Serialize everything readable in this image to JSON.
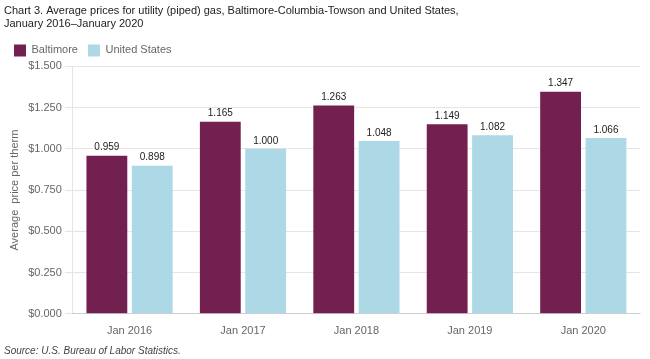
{
  "chart_data": {
    "type": "bar",
    "title": [
      "Chart 3. Average prices for utility (piped) gas, Baltimore-Columbia-Towson and United States,",
      "January 2016–January 2020"
    ],
    "ylabel": "Average  price per therm",
    "source": "Source: U.S. Bureau of Labor Statistics.",
    "categories": [
      "Jan 2016",
      "Jan 2017",
      "Jan 2018",
      "Jan 2019",
      "Jan 2020"
    ],
    "series": [
      {
        "name": "Baltimore",
        "color": "#722050",
        "values": [
          0.959,
          1.165,
          1.263,
          1.149,
          1.347
        ],
        "value_labels": [
          "0.959",
          "1.165",
          "1.263",
          "1.149",
          "1.347"
        ]
      },
      {
        "name": "United States",
        "color": "#add8e6",
        "values": [
          0.898,
          1.0,
          1.048,
          1.082,
          1.066
        ],
        "value_labels": [
          "0.898",
          "1.000",
          "1.048",
          "1.082",
          "1.066"
        ]
      }
    ],
    "ylim": [
      0,
      1.5
    ],
    "yticks": [
      {
        "value": 0.0,
        "label": "$0.000"
      },
      {
        "value": 0.25,
        "label": "$0.250"
      },
      {
        "value": 0.5,
        "label": "$0.500"
      },
      {
        "value": 0.75,
        "label": "$0.750"
      },
      {
        "value": 1.0,
        "label": "$1.000"
      },
      {
        "value": 1.25,
        "label": "$1.250"
      },
      {
        "value": 1.5,
        "label": "$1.500"
      }
    ],
    "grid": true,
    "legend": "top left",
    "data_labels": true
  }
}
